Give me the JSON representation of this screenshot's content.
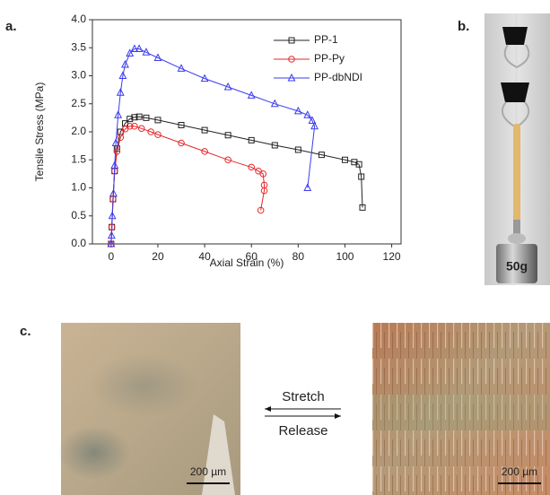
{
  "panels": {
    "a": "a.",
    "b": "b.",
    "c": "c."
  },
  "chart_data": {
    "type": "line",
    "x_label": "Axial Strain (%)",
    "y_label": "Tensile Stress (MPa)",
    "xlim": [
      -8,
      124
    ],
    "xticks": [
      0,
      20,
      40,
      60,
      80,
      100,
      120
    ],
    "ylim": [
      0,
      4
    ],
    "yticks": [
      {
        "value": 0,
        "label": "0.0"
      },
      {
        "value": 0.5,
        "label": "0.5"
      },
      {
        "value": 1,
        "label": "1.0"
      },
      {
        "value": 1.5,
        "label": "1.5"
      },
      {
        "value": 2,
        "label": "2.0"
      },
      {
        "value": 2.5,
        "label": "2.5"
      },
      {
        "value": 3,
        "label": "3.0"
      },
      {
        "value": 3.5,
        "label": "3.5"
      },
      {
        "value": 4,
        "label": "4.0"
      }
    ],
    "legend": "upper right",
    "series": [
      {
        "name": "PP-1",
        "color": "#222222",
        "marker": "square",
        "x": [
          0,
          0.3,
          0.8,
          1.5,
          2.5,
          4,
          6,
          8,
          10,
          12,
          15,
          20,
          30,
          40,
          50,
          60,
          70,
          80,
          90,
          100,
          104,
          106,
          107,
          107.5
        ],
        "values": [
          0,
          0.3,
          0.8,
          1.3,
          1.7,
          2.0,
          2.15,
          2.23,
          2.26,
          2.27,
          2.25,
          2.21,
          2.12,
          2.03,
          1.94,
          1.85,
          1.76,
          1.68,
          1.59,
          1.5,
          1.46,
          1.42,
          1.2,
          0.65
        ]
      },
      {
        "name": "PP-Py",
        "color": "#e8262a",
        "marker": "circle",
        "x": [
          0,
          0.3,
          0.8,
          1.5,
          2.5,
          4,
          6,
          8,
          10,
          13,
          17,
          20,
          30,
          40,
          50,
          60,
          63,
          65,
          65.5,
          65.5,
          64
        ],
        "values": [
          0,
          0.3,
          0.8,
          1.3,
          1.65,
          1.9,
          2.05,
          2.1,
          2.1,
          2.06,
          2.0,
          1.95,
          1.8,
          1.65,
          1.5,
          1.37,
          1.3,
          1.25,
          1.05,
          0.95,
          0.6
        ]
      },
      {
        "name": "PP-dbNDI",
        "color": "#3b3bf0",
        "marker": "triangle",
        "x": [
          0,
          0.2,
          0.5,
          1,
          1.5,
          2,
          3,
          4,
          5,
          6,
          8,
          10,
          12,
          15,
          20,
          30,
          40,
          50,
          60,
          70,
          80,
          84,
          86,
          87,
          84
        ],
        "values": [
          0,
          0.15,
          0.5,
          0.9,
          1.4,
          1.8,
          2.3,
          2.7,
          3.0,
          3.2,
          3.4,
          3.48,
          3.48,
          3.42,
          3.32,
          3.13,
          2.95,
          2.8,
          2.65,
          2.5,
          2.37,
          2.3,
          2.2,
          2.1,
          1.0
        ]
      }
    ]
  },
  "photo": {
    "weight_label": "50g"
  },
  "micrographs": {
    "stretch": "Stretch",
    "release": "Release",
    "left_scale": "200 µm",
    "right_scale": "200 µm"
  }
}
